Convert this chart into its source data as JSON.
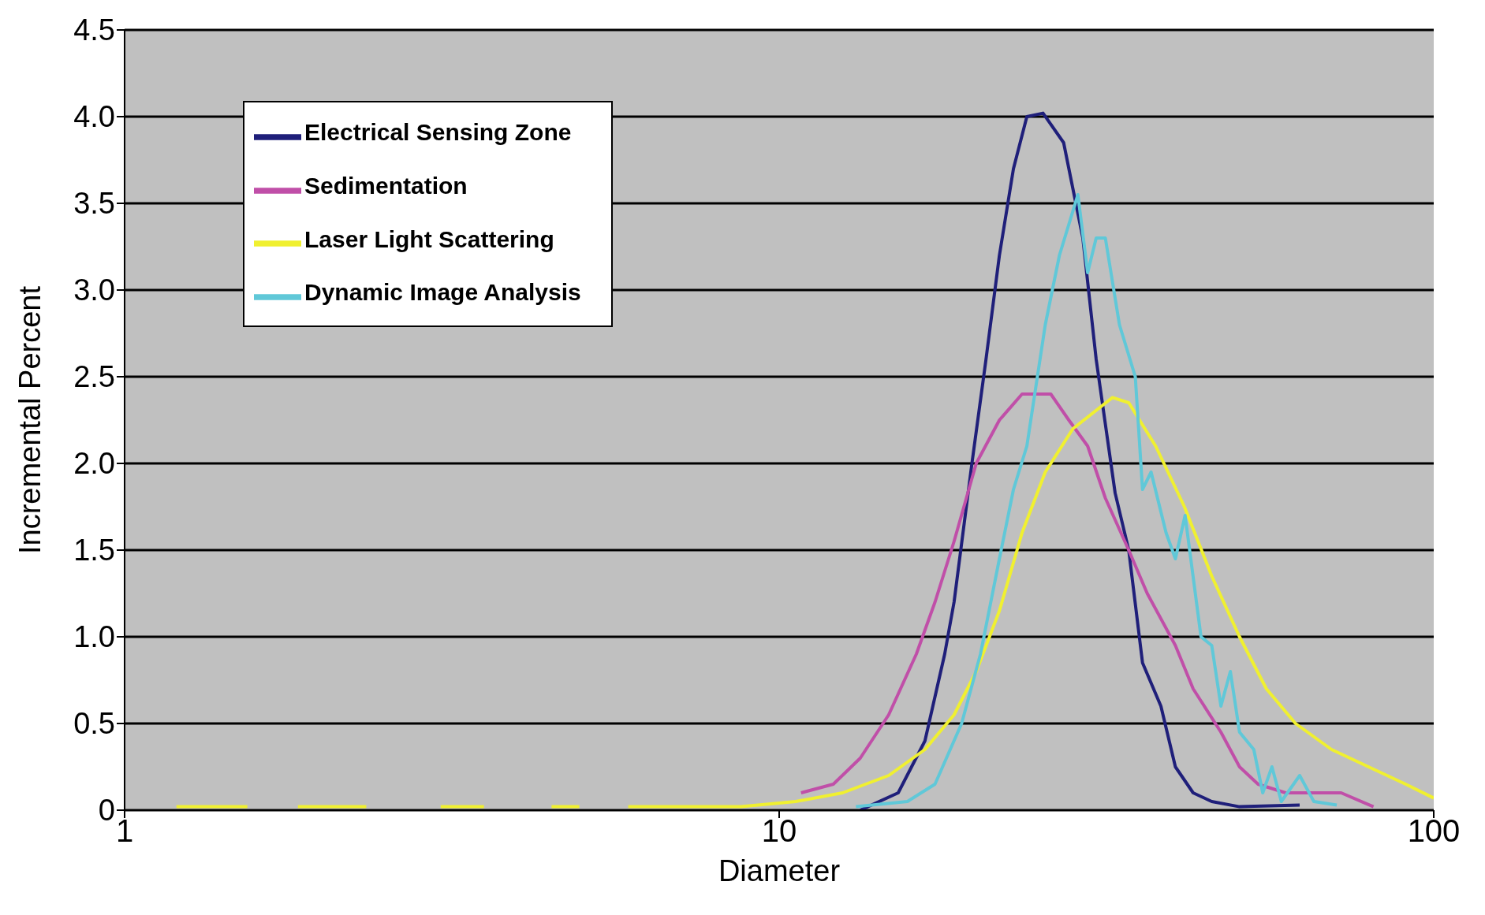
{
  "chart_data": {
    "type": "line",
    "xlabel": "Diameter",
    "ylabel": "Incremental Percent",
    "log": "x",
    "xlim": [
      1,
      100
    ],
    "xticks": [
      1,
      10,
      100
    ],
    "ylim": [
      0,
      4.5
    ],
    "yticks": [
      {
        "value": 0,
        "label": "0"
      },
      {
        "value": 0.5,
        "label": "0.5"
      },
      {
        "value": 1,
        "label": "1.0"
      },
      {
        "value": 1.5,
        "label": "1.5"
      },
      {
        "value": 2,
        "label": "2.0"
      },
      {
        "value": 2.5,
        "label": "2.5"
      },
      {
        "value": 3,
        "label": "3.0"
      },
      {
        "value": 3.5,
        "label": "3.5"
      },
      {
        "value": 4,
        "label": "4.0"
      },
      {
        "value": 4.5,
        "label": "4.5"
      }
    ],
    "grid": "y",
    "legend": "top left",
    "marker": "none",
    "line_style": "solid",
    "series": [
      {
        "name": "Electrical Sensing Zone",
        "color": "#1f1f7a",
        "x": [
          13.3,
          15.2,
          16.7,
          17.9,
          18.5,
          19.7,
          20.7,
          21.7,
          22.8,
          23.9,
          25.3,
          27.2,
          29.1,
          30.5,
          32.6,
          34.2,
          35.9,
          38.3,
          40.3,
          42.9,
          45.8,
          50.5,
          62.4
        ],
        "values": [
          0,
          0.1,
          0.4,
          0.9,
          1.2,
          2.0,
          2.6,
          3.2,
          3.7,
          4.0,
          4.02,
          3.85,
          3.3,
          2.6,
          1.83,
          1.5,
          0.85,
          0.6,
          0.25,
          0.1,
          0.05,
          0.02,
          0.03
        ]
      },
      {
        "name": "Sedimentation",
        "color": "#c04fa8",
        "x": [
          10.8,
          12.1,
          13.3,
          14.7,
          16.2,
          17.3,
          18.5,
          20.0,
          21.7,
          23.5,
          26.0,
          27.7,
          29.6,
          31.5,
          34.2,
          36.5,
          40.3,
          42.9,
          47.3,
          50.5,
          53.9,
          59.4,
          72.2,
          80.9
        ],
        "values": [
          0.1,
          0.15,
          0.3,
          0.55,
          0.9,
          1.2,
          1.55,
          2.0,
          2.25,
          2.4,
          2.4,
          2.25,
          2.1,
          1.8,
          1.5,
          1.25,
          0.95,
          0.7,
          0.45,
          0.25,
          0.15,
          0.1,
          0.1,
          0.02
        ]
      },
      {
        "name": "Laser Light Scattering",
        "color": "#f0f030",
        "x": [
          1.2,
          1.54,
          1.7,
          1.84,
          2.34,
          2.7,
          3.04,
          3.54,
          4.0,
          4.49,
          4.95,
          5.4,
          5.88,
          8.74,
          10.6,
          12.5,
          14.7,
          16.7,
          18.5,
          20.0,
          21.7,
          23.5,
          25.5,
          28.1,
          32.3,
          34.2,
          37.6,
          41.6,
          45.8,
          50.5,
          55.5,
          61.5,
          69.8,
          79.5,
          90.6,
          100
        ],
        "values": [
          0.02,
          0.02,
          null,
          0.02,
          0.02,
          null,
          0.02,
          0.02,
          null,
          0.02,
          0.02,
          null,
          0.02,
          0.02,
          0.05,
          0.1,
          0.2,
          0.35,
          0.55,
          0.8,
          1.15,
          1.6,
          1.95,
          2.2,
          2.38,
          2.35,
          2.1,
          1.75,
          1.35,
          1.0,
          0.7,
          0.5,
          0.35,
          0.25,
          0.15,
          0.07
        ]
      },
      {
        "name": "Dynamic Image Analysis",
        "color": "#60c8d8",
        "x": [
          13.1,
          15.7,
          17.3,
          19.0,
          20.3,
          21.7,
          22.8,
          23.9,
          25.5,
          26.8,
          28.6,
          29.6,
          30.5,
          31.5,
          33.1,
          35.0,
          35.9,
          37.0,
          39.0,
          40.3,
          41.7,
          44.1,
          45.8,
          47.3,
          48.9,
          50.5,
          53.1,
          54.8,
          56.6,
          58.5,
          62.4,
          65.6,
          71.1
        ],
        "values": [
          0.02,
          0.05,
          0.15,
          0.5,
          0.9,
          1.45,
          1.85,
          2.1,
          2.8,
          3.2,
          3.55,
          3.1,
          3.3,
          3.3,
          2.8,
          2.5,
          1.85,
          1.95,
          1.6,
          1.45,
          1.7,
          1.0,
          0.95,
          0.6,
          0.8,
          0.45,
          0.35,
          0.1,
          0.25,
          0.05,
          0.2,
          0.05,
          0.03
        ]
      }
    ]
  }
}
